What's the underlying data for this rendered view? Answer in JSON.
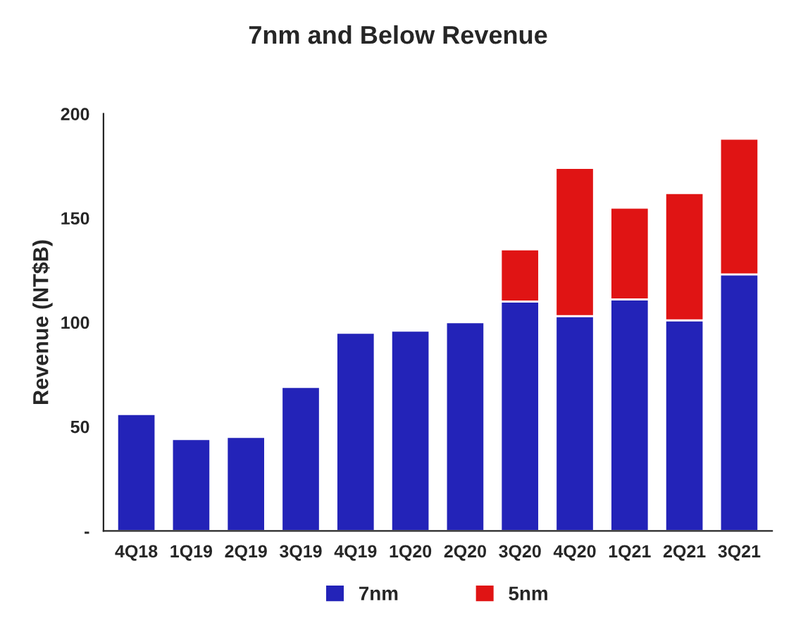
{
  "chart_data": {
    "type": "bar",
    "title": "7nm and Below Revenue",
    "ylabel": "Revenue (NT$B)",
    "categories": [
      "4Q18",
      "1Q19",
      "2Q19",
      "3Q19",
      "4Q19",
      "1Q20",
      "2Q20",
      "3Q20",
      "4Q20",
      "1Q21",
      "2Q21",
      "3Q21"
    ],
    "series": [
      {
        "name": "7nm",
        "color": "#2323b8",
        "values": [
          56,
          44,
          45,
          69,
          95,
          96,
          100,
          110,
          103,
          111,
          101,
          123
        ]
      },
      {
        "name": "5nm",
        "color": "#e01414",
        "values": [
          null,
          null,
          null,
          null,
          null,
          null,
          null,
          25,
          71,
          44,
          61,
          65
        ]
      }
    ],
    "stacked": true,
    "ylim": [
      0,
      200
    ],
    "yticks": [
      {
        "value": 0,
        "label": "-"
      },
      50,
      100,
      150,
      200
    ],
    "grid": false,
    "legend": "bottom"
  }
}
